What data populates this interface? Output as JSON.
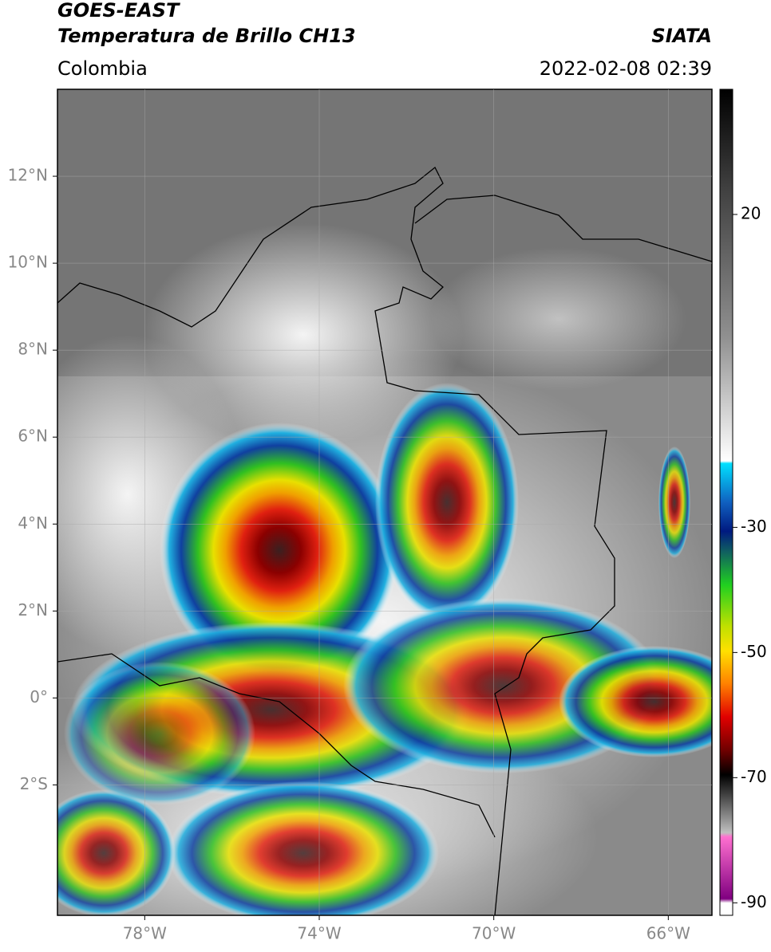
{
  "header": {
    "satellite": "GOES-EAST",
    "product": "Temperatura de Brillo CH13",
    "region": "Colombia",
    "source": "SIATA",
    "datetime": "2022-02-08 02:39"
  },
  "map": {
    "xlim": [
      -80,
      -65
    ],
    "ylim": [
      -5,
      14
    ],
    "xticks": [
      {
        "value": -78,
        "label": "78°W"
      },
      {
        "value": -74,
        "label": "74°W"
      },
      {
        "value": -70,
        "label": "70°W"
      },
      {
        "value": -66,
        "label": "66°W"
      }
    ],
    "yticks": [
      {
        "value": 12,
        "label": "12°N"
      },
      {
        "value": 10,
        "label": "10°N"
      },
      {
        "value": 8,
        "label": "8°N"
      },
      {
        "value": 6,
        "label": "6°N"
      },
      {
        "value": 4,
        "label": "4°N"
      },
      {
        "value": 2,
        "label": "2°N"
      },
      {
        "value": 0,
        "label": "0°"
      },
      {
        "value": -2,
        "label": "2°S"
      }
    ],
    "grid": true
  },
  "colorbar": {
    "lim": [
      -92,
      40
    ],
    "ticks": [
      20,
      -30,
      -50,
      -70,
      -90
    ]
  }
}
